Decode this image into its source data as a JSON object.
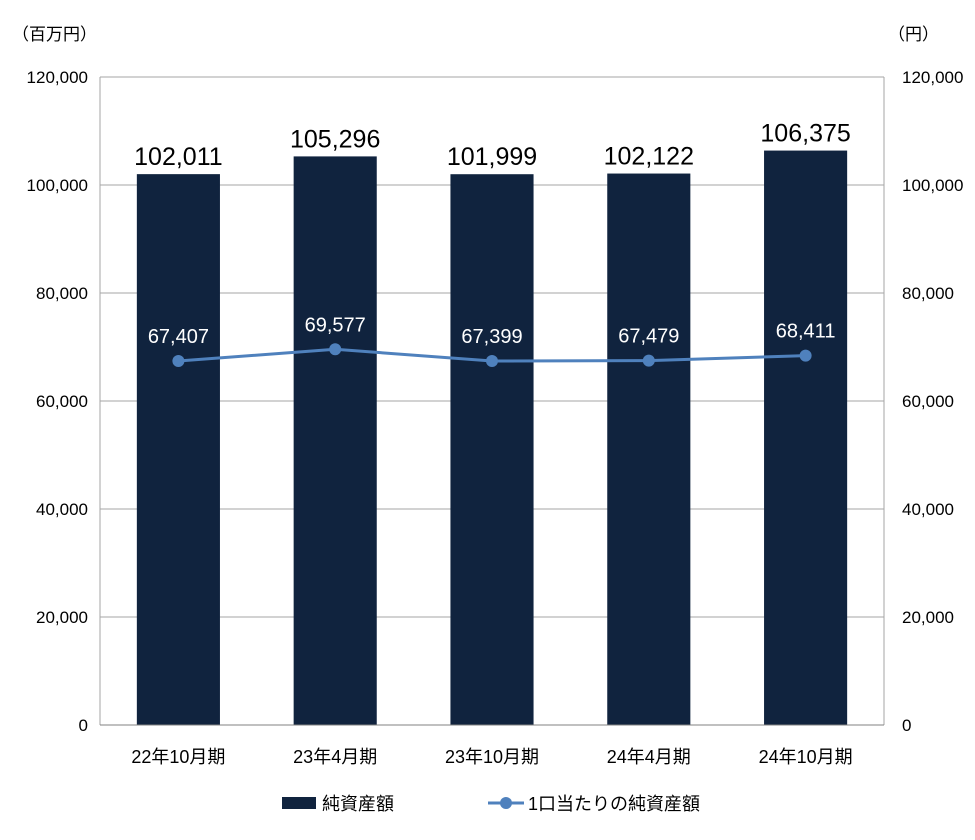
{
  "chart_data": {
    "type": "bar",
    "categories": [
      "22年10月期",
      "23年4月期",
      "23年10月期",
      "24年4月期",
      "24年10月期"
    ],
    "series": [
      {
        "name": "純資産額",
        "type": "bar",
        "axis": "left",
        "color": "#10233e",
        "values": [
          102011,
          105296,
          101999,
          102122,
          106375
        ],
        "labels": [
          "102,011",
          "105,296",
          "101,999",
          "102,122",
          "106,375"
        ]
      },
      {
        "name": "1口当たりの純資産額",
        "type": "line",
        "axis": "right",
        "color": "#4f81bd",
        "values": [
          67407,
          69577,
          67399,
          67479,
          68411
        ],
        "labels": [
          "67,407",
          "69,577",
          "67,399",
          "67,479",
          "68,411"
        ]
      }
    ],
    "y_left": {
      "unit": "（百万円）",
      "ylim": [
        0,
        120000
      ],
      "ticks": [
        0,
        20000,
        40000,
        60000,
        80000,
        100000,
        120000
      ],
      "tick_labels": [
        "0",
        "20,000",
        "40,000",
        "60,000",
        "80,000",
        "100,000",
        "120,000"
      ]
    },
    "y_right": {
      "unit": "（円）",
      "ylim": [
        0,
        120000
      ],
      "ticks": [
        0,
        20000,
        40000,
        60000,
        80000,
        100000,
        120000
      ],
      "tick_labels": [
        "0",
        "20,000",
        "40,000",
        "60,000",
        "80,000",
        "100,000",
        "120,000"
      ]
    },
    "grid": true,
    "legend_position": "bottom"
  }
}
